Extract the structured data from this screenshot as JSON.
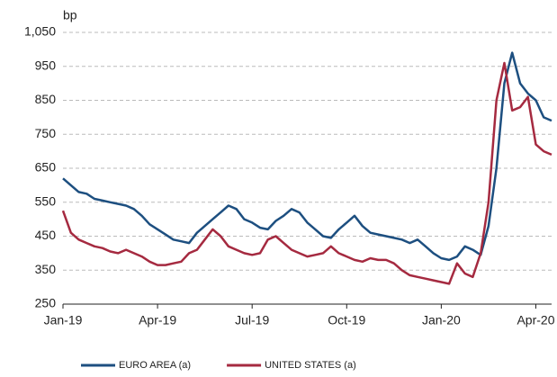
{
  "chart_data": {
    "type": "line",
    "y_label": "bp",
    "x": [
      0,
      0.25,
      0.5,
      0.75,
      1,
      1.25,
      1.5,
      1.75,
      2,
      2.25,
      2.5,
      2.75,
      3,
      3.25,
      3.5,
      3.75,
      4,
      4.25,
      4.5,
      4.75,
      5,
      5.25,
      5.5,
      5.75,
      6,
      6.25,
      6.5,
      6.75,
      7,
      7.25,
      7.5,
      7.75,
      8,
      8.25,
      8.5,
      8.75,
      9,
      9.25,
      9.5,
      9.75,
      10,
      10.25,
      10.5,
      10.75,
      11,
      11.25,
      11.5,
      11.75,
      12,
      12.25,
      12.5,
      12.75,
      13,
      13.25,
      13.5,
      13.75,
      14,
      14.25,
      14.5,
      14.75,
      15,
      15.25,
      15.5
    ],
    "series": [
      {
        "name": "EURO AREA (a)",
        "color": "#1d4f80",
        "values": [
          620,
          600,
          580,
          575,
          560,
          555,
          550,
          545,
          540,
          530,
          510,
          485,
          470,
          455,
          440,
          435,
          430,
          460,
          480,
          500,
          520,
          540,
          530,
          500,
          490,
          475,
          470,
          495,
          510,
          530,
          520,
          490,
          470,
          450,
          445,
          470,
          490,
          510,
          480,
          460,
          455,
          450,
          445,
          440,
          430,
          440,
          420,
          400,
          385,
          380,
          390,
          420,
          410,
          395,
          480,
          650,
          900,
          990,
          900,
          870,
          850,
          800,
          790
        ]
      },
      {
        "name": "UNITED STATES (a)",
        "color": "#a52a40",
        "values": [
          525,
          460,
          440,
          430,
          420,
          415,
          405,
          400,
          410,
          400,
          390,
          375,
          365,
          365,
          370,
          375,
          400,
          410,
          440,
          470,
          450,
          420,
          410,
          400,
          395,
          400,
          440,
          450,
          430,
          410,
          400,
          390,
          395,
          400,
          420,
          400,
          390,
          380,
          375,
          385,
          380,
          380,
          370,
          350,
          335,
          330,
          325,
          320,
          315,
          310,
          370,
          340,
          330,
          400,
          550,
          850,
          960,
          820,
          830,
          860,
          720,
          700,
          690
        ]
      }
    ],
    "xlim": [
      0,
      15.5
    ],
    "xticks": [
      {
        "value": 0,
        "label": "Jan-19"
      },
      {
        "value": 3,
        "label": "Apr-19"
      },
      {
        "value": 6,
        "label": "Jul-19"
      },
      {
        "value": 9,
        "label": "Oct-19"
      },
      {
        "value": 12,
        "label": "Jan-20"
      },
      {
        "value": 15,
        "label": "Apr-20"
      }
    ],
    "ylim": [
      250,
      1050
    ],
    "yticks": [
      250,
      350,
      450,
      550,
      650,
      750,
      850,
      950,
      {
        "value": 1050,
        "label": "1,050"
      }
    ],
    "grid": true,
    "legend": "bottom"
  }
}
